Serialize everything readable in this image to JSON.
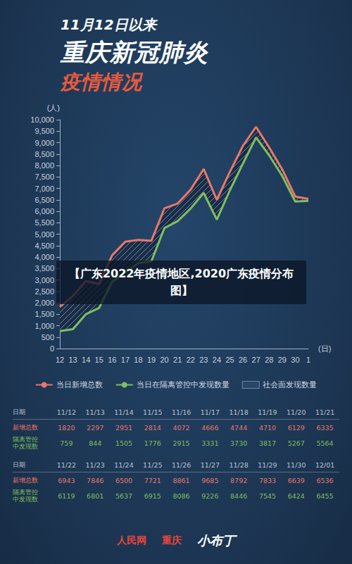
{
  "header": {
    "line1": "11月12日以来",
    "line2": "重庆新冠肺炎",
    "line3": "疫情情况"
  },
  "banner": "【广东2022年疫情地区,2020广东疫情分布图】",
  "chart_data": {
    "type": "line",
    "y_label": "(人)",
    "x_label": "(日)",
    "categories": [
      "12",
      "13",
      "14",
      "15",
      "16",
      "17",
      "18",
      "19",
      "20",
      "21",
      "22",
      "23",
      "24",
      "25",
      "26",
      "27",
      "28",
      "29",
      "30",
      "1"
    ],
    "series": [
      {
        "name": "当日新增总数",
        "color": "#e8776c",
        "type": "line",
        "values": [
          1820,
          2297,
          2951,
          2814,
          4072,
          4666,
          4744,
          4710,
          6129,
          6335,
          6943,
          7846,
          6500,
          7721,
          8861,
          9685,
          8792,
          7833,
          6639,
          6536
        ]
      },
      {
        "name": "当日在隔离管控中发现数量",
        "color": "#7fbf5e",
        "type": "line",
        "values": [
          759,
          844,
          1505,
          1776,
          2915,
          3331,
          3730,
          3817,
          5267,
          5564,
          6119,
          6801,
          5637,
          6915,
          8086,
          9226,
          8446,
          7545,
          6424,
          6455
        ]
      },
      {
        "name": "社会面发现数量",
        "color": "#2a4565",
        "type": "area",
        "values": [
          1061,
          1453,
          1446,
          1038,
          1157,
          1335,
          1014,
          893,
          862,
          771,
          824,
          1045,
          863,
          806,
          775,
          459,
          346,
          288,
          215,
          81
        ]
      }
    ],
    "ylim": [
      0,
      10000
    ],
    "yticks": [
      0,
      500,
      {
        "value": 1000,
        "label": "1,000"
      },
      {
        "value": 1500,
        "label": "1,500"
      },
      {
        "value": 2000,
        "label": "2,000"
      },
      {
        "value": 2500,
        "label": "2,500"
      },
      {
        "value": 3000,
        "label": "3,000"
      },
      {
        "value": 3500,
        "label": "3,500"
      },
      {
        "value": 4000,
        "label": "4,000"
      },
      {
        "value": 4500,
        "label": "4,500"
      },
      {
        "value": 5000,
        "label": "5,000"
      },
      {
        "value": 5500,
        "label": "5,500"
      },
      {
        "value": 6000,
        "label": "6,000"
      },
      {
        "value": 6500,
        "label": "6,500"
      },
      {
        "value": 7000,
        "label": "7,000"
      },
      {
        "value": 7500,
        "label": "7,500"
      },
      {
        "value": 8000,
        "label": "8,000"
      },
      {
        "value": 8500,
        "label": "8,500"
      },
      {
        "value": 9000,
        "label": "9,000"
      },
      {
        "value": 9500,
        "label": "9,500"
      },
      {
        "value": 10000,
        "label": "10,000"
      }
    ],
    "grid": false,
    "legend": "bottom"
  },
  "table": {
    "row_labels": [
      "日期",
      "新增总数",
      "隔离管控\n中发现数"
    ],
    "dates": [
      "11/12",
      "11/13",
      "11/14",
      "11/15",
      "11/16",
      "11/17",
      "11/18",
      "11/19",
      "11/20",
      "11/21",
      "11/22",
      "11/23",
      "11/24",
      "11/25",
      "11/26",
      "11/27",
      "11/28",
      "11/29",
      "11/30",
      "12/01"
    ]
  },
  "footer": {
    "logos": [
      "人民网",
      "重庆",
      "小布丁"
    ]
  }
}
